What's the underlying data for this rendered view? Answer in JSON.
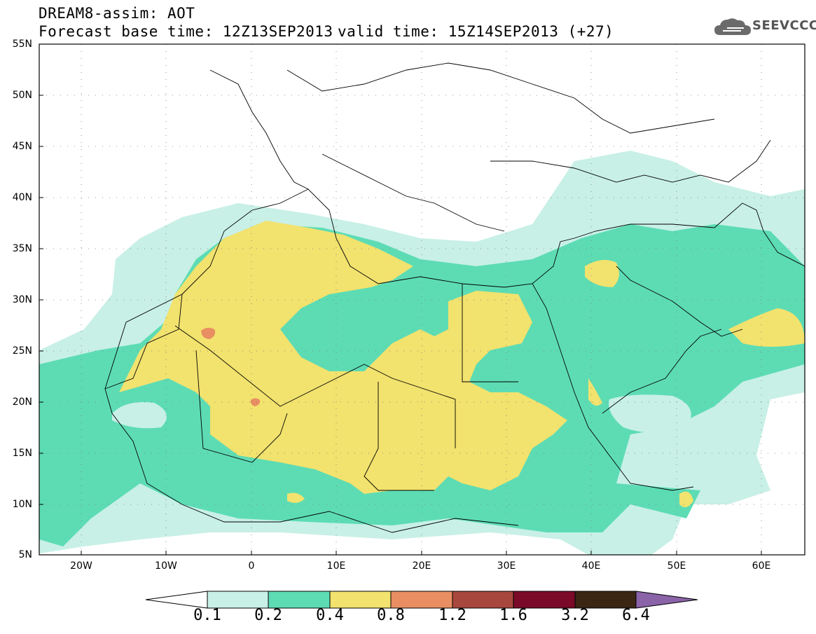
{
  "header": {
    "title_line1": "DREAM8-assim: AOT",
    "title_line2": "Forecast base time: 12Z13SEP2013",
    "valid_time": "valid time: 15Z14SEP2013 (+27)",
    "logo_text": "SEEVCCC",
    "logo_icon": "cloud-icon"
  },
  "map": {
    "lat_labels": [
      "55N",
      "50N",
      "45N",
      "40N",
      "35N",
      "30N",
      "25N",
      "20N",
      "15N",
      "10N",
      "5N"
    ],
    "lon_labels": [
      "20W",
      "10W",
      "0",
      "10E",
      "20E",
      "30E",
      "40E",
      "50E",
      "60E"
    ],
    "lat_range": [
      5,
      55
    ],
    "lon_range": [
      -25,
      65
    ],
    "grid": "dotted"
  },
  "legend": {
    "levels": [
      "0.1",
      "0.2",
      "0.4",
      "0.8",
      "1.2",
      "1.6",
      "3.2",
      "6.4"
    ],
    "colors": {
      "below_0_1": "#ffffff",
      "0_1_to_0_2": "#c8f0e6",
      "0_2_to_0_4": "#5ddcb4",
      "0_4_to_0_8": "#f2e26e",
      "0_8_to_1_2": "#e88e62",
      "1_2_to_1_6": "#a8473d",
      "1_6_to_3_2": "#7a0a28",
      "3_2_to_6_4": "#3b2614",
      "above_6_4": "#8a63a8"
    }
  }
}
